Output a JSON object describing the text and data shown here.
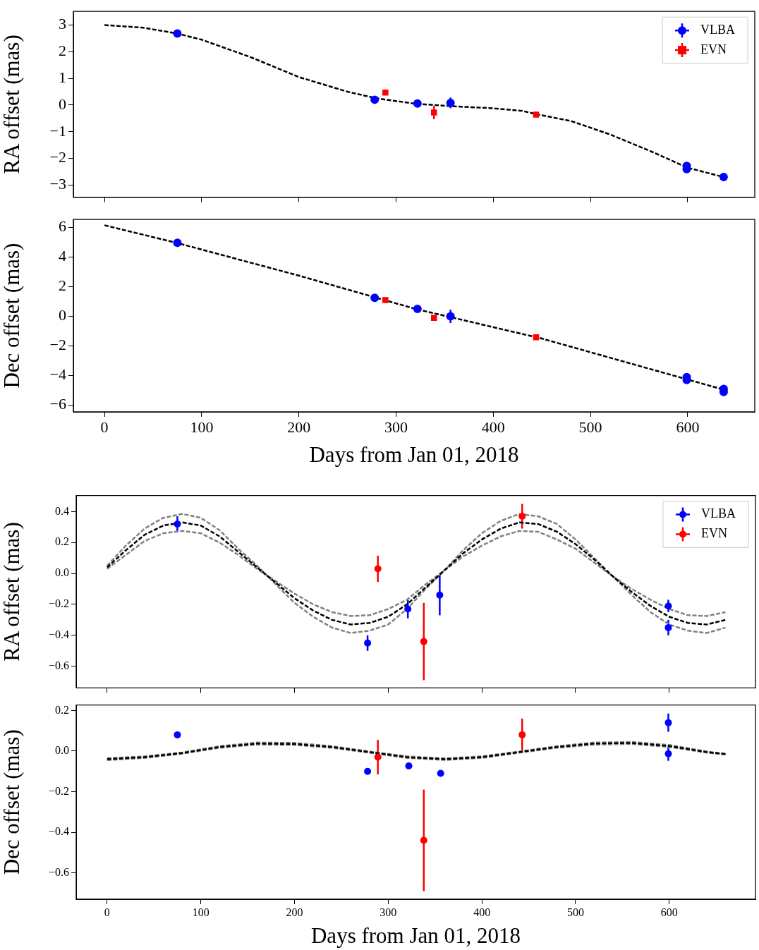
{
  "chart_data": [
    {
      "type": "scatter",
      "ylabel": "RA offset (mas)",
      "xlim": [
        -32,
        669
      ],
      "xticks": [
        0,
        100,
        200,
        300,
        400,
        500,
        600
      ],
      "ylim": [
        -3.46,
        3.51
      ],
      "yticks": [
        -3,
        -2,
        -1,
        0,
        1,
        2,
        3
      ],
      "tick_labels": "y",
      "grid": false,
      "legend": "top right",
      "series": [
        {
          "type": "line",
          "color": "#000000",
          "line_style": "dashed",
          "x": [
            0,
            40,
            75,
            100,
            150,
            200,
            250,
            280,
            320,
            360,
            400,
            430,
            444,
            480,
            520,
            560,
            600,
            637
          ],
          "values": [
            3.0,
            2.9,
            2.68,
            2.45,
            1.8,
            1.05,
            0.5,
            0.25,
            0.05,
            -0.05,
            -0.12,
            -0.22,
            -0.34,
            -0.6,
            -1.1,
            -1.7,
            -2.35,
            -2.7
          ]
        },
        {
          "type": "scatter",
          "name": "VLBA",
          "color": "#0000ff",
          "marker": "circle",
          "x": [
            75,
            278,
            322,
            356,
            599,
            599,
            637
          ],
          "values": [
            2.68,
            0.2,
            0.06,
            0.08,
            -2.28,
            -2.4,
            -2.7
          ],
          "errors": [
            null,
            null,
            null,
            0.2,
            null,
            null,
            null
          ]
        },
        {
          "type": "scatter",
          "name": "EVN",
          "color": "#ff0000",
          "marker": "square",
          "x": [
            289,
            339,
            444
          ],
          "values": [
            0.47,
            -0.28,
            -0.36
          ],
          "errors": [
            null,
            0.25,
            null
          ]
        }
      ]
    },
    {
      "type": "scatter",
      "ylabel": "Dec offset (mas)",
      "xlabel": "Days from Jan 01, 2018",
      "xlim": [
        -32,
        669
      ],
      "xticks": [
        0,
        100,
        200,
        300,
        400,
        500,
        600
      ],
      "ylim": [
        -6.45,
        6.54
      ],
      "yticks": [
        -6,
        -4,
        -2,
        0,
        2,
        4,
        6
      ],
      "grid": false,
      "series": [
        {
          "type": "line",
          "color": "#000000",
          "line_style": "dashed",
          "x": [
            0,
            75,
            200,
            320,
            450,
            637
          ],
          "values": [
            6.15,
            4.95,
            2.75,
            0.5,
            -1.5,
            -4.95
          ]
        },
        {
          "type": "scatter",
          "color": "#0000ff",
          "marker": "circle",
          "x": [
            75,
            278,
            322,
            356,
            599,
            599,
            637,
            637
          ],
          "values": [
            4.97,
            1.25,
            0.5,
            0.0,
            -4.1,
            -4.3,
            -4.9,
            -5.1
          ],
          "errors": [
            null,
            null,
            null,
            0.45,
            null,
            null,
            null,
            null
          ]
        },
        {
          "type": "scatter",
          "color": "#ff0000",
          "marker": "square",
          "x": [
            289,
            339,
            444
          ],
          "values": [
            1.1,
            -0.1,
            -1.42
          ]
        }
      ]
    },
    {
      "type": "scatter",
      "ylabel": "RA offset (mas)",
      "xlim": [
        -33,
        692
      ],
      "xticks": [
        0,
        100,
        200,
        300,
        400,
        500,
        600
      ],
      "ylim": [
        -0.74,
        0.504
      ],
      "yticks": [
        {
          "value": -0.6,
          "label": "−0.6"
        },
        {
          "value": -0.4,
          "label": "−0.4"
        },
        {
          "value": -0.2,
          "label": "−0.2"
        },
        {
          "value": 0,
          "label": "0.0"
        },
        {
          "value": 0.2,
          "label": "0.2"
        },
        {
          "value": 0.4,
          "label": "0.4"
        }
      ],
      "tick_labels": "y",
      "grid": false,
      "legend": "top right",
      "series": [
        {
          "type": "line",
          "color": "#000000",
          "line_style": "dashed",
          "x": [
            0,
            20,
            40,
            60,
            80,
            100,
            120,
            140,
            160,
            180,
            200,
            220,
            240,
            260,
            280,
            300,
            320,
            340,
            360,
            380,
            400,
            420,
            440,
            460,
            480,
            500,
            520,
            540,
            560,
            580,
            600,
            620,
            640,
            660
          ],
          "values": [
            0.04,
            0.15,
            0.25,
            0.31,
            0.33,
            0.31,
            0.24,
            0.14,
            0.04,
            -0.06,
            -0.16,
            -0.24,
            -0.3,
            -0.33,
            -0.32,
            -0.28,
            -0.2,
            -0.09,
            0.02,
            0.13,
            0.22,
            0.29,
            0.33,
            0.32,
            0.27,
            0.19,
            0.09,
            -0.02,
            -0.12,
            -0.21,
            -0.28,
            -0.32,
            -0.33,
            -0.3
          ]
        },
        {
          "type": "line",
          "color": "#808080",
          "line_style": "dashed",
          "x": [
            0,
            20,
            40,
            60,
            80,
            100,
            120,
            140,
            160,
            180,
            200,
            220,
            240,
            260,
            280,
            300,
            320,
            340,
            360,
            380,
            400,
            420,
            440,
            460,
            480,
            500,
            520,
            540,
            560,
            580,
            600,
            620,
            640,
            660
          ],
          "values": [
            0.05,
            0.18,
            0.29,
            0.36,
            0.385,
            0.36,
            0.28,
            0.16,
            0.05,
            -0.07,
            -0.19,
            -0.28,
            -0.35,
            -0.385,
            -0.37,
            -0.33,
            -0.23,
            -0.1,
            0.02,
            0.15,
            0.26,
            0.34,
            0.385,
            0.37,
            0.32,
            0.22,
            0.1,
            -0.02,
            -0.14,
            -0.25,
            -0.33,
            -0.37,
            -0.385,
            -0.35
          ]
        },
        {
          "type": "line",
          "color": "#808080",
          "line_style": "dashed",
          "x": [
            0,
            20,
            40,
            60,
            80,
            100,
            120,
            140,
            160,
            180,
            200,
            220,
            240,
            260,
            280,
            300,
            320,
            340,
            360,
            380,
            400,
            420,
            440,
            460,
            480,
            500,
            520,
            540,
            560,
            580,
            600,
            620,
            640,
            660
          ],
          "values": [
            0.03,
            0.12,
            0.21,
            0.26,
            0.275,
            0.26,
            0.2,
            0.12,
            0.03,
            -0.05,
            -0.13,
            -0.2,
            -0.25,
            -0.275,
            -0.27,
            -0.23,
            -0.17,
            -0.07,
            0.02,
            0.11,
            0.18,
            0.24,
            0.275,
            0.27,
            0.22,
            0.16,
            0.07,
            -0.02,
            -0.1,
            -0.17,
            -0.23,
            -0.27,
            -0.275,
            -0.25
          ]
        },
        {
          "type": "scatter",
          "name": "VLBA",
          "color": "#0000ff",
          "marker": "circle",
          "x": [
            75,
            278,
            321,
            355,
            599,
            599
          ],
          "values": [
            0.32,
            -0.45,
            -0.23,
            -0.14,
            -0.21,
            -0.35
          ],
          "errors": [
            0.05,
            0.05,
            0.06,
            0.13,
            0.04,
            0.05
          ]
        },
        {
          "type": "scatter",
          "name": "EVN",
          "color": "#ff0000",
          "marker": "circle",
          "x": [
            289,
            338,
            443
          ],
          "values": [
            0.03,
            -0.44,
            0.37
          ],
          "errors": [
            0.085,
            0.25,
            0.08
          ]
        }
      ]
    },
    {
      "type": "scatter",
      "ylabel": "Dec offset (mas)",
      "xlabel": "Days from Jan 01, 2018",
      "xlim": [
        -33,
        692
      ],
      "xticks": [
        0,
        100,
        200,
        300,
        400,
        500,
        600
      ],
      "ylim": [
        -0.73,
        0.227
      ],
      "yticks": [
        {
          "value": -0.6,
          "label": "−0.6"
        },
        {
          "value": -0.4,
          "label": "−0.4"
        },
        {
          "value": -0.2,
          "label": "−0.2"
        },
        {
          "value": 0,
          "label": "0.0"
        },
        {
          "value": 0.2,
          "label": "0.2"
        }
      ],
      "grid": false,
      "series": [
        {
          "type": "line",
          "color": "#000000",
          "line_style": "dashed",
          "x": [
            0,
            40,
            80,
            120,
            160,
            200,
            240,
            280,
            320,
            360,
            400,
            440,
            480,
            520,
            560,
            600,
            640,
            660
          ],
          "values": [
            -0.04,
            -0.03,
            -0.01,
            0.02,
            0.037,
            0.035,
            0.02,
            -0.005,
            -0.03,
            -0.04,
            -0.03,
            -0.005,
            0.02,
            0.037,
            0.04,
            0.025,
            -0.005,
            -0.015
          ]
        },
        {
          "type": "line",
          "color": "#808080",
          "line_style": "dashed",
          "x": [
            0,
            40,
            80,
            120,
            160,
            200,
            240,
            280,
            320,
            360,
            400,
            440,
            480,
            520,
            560,
            600,
            640,
            660
          ],
          "values": [
            -0.035,
            -0.026,
            -0.007,
            0.024,
            0.042,
            0.04,
            0.024,
            -0.002,
            -0.026,
            -0.036,
            -0.026,
            -0.002,
            0.024,
            0.042,
            0.045,
            0.03,
            -0.002,
            -0.013
          ]
        },
        {
          "type": "line",
          "color": "#808080",
          "line_style": "dashed",
          "x": [
            0,
            40,
            80,
            120,
            160,
            200,
            240,
            280,
            320,
            360,
            400,
            440,
            480,
            520,
            560,
            600,
            640,
            660
          ],
          "values": [
            -0.045,
            -0.034,
            -0.013,
            0.016,
            0.032,
            0.03,
            0.016,
            -0.008,
            -0.034,
            -0.044,
            -0.034,
            -0.008,
            0.016,
            0.032,
            0.035,
            0.02,
            -0.008,
            -0.017
          ]
        },
        {
          "type": "scatter",
          "color": "#0000ff",
          "marker": "circle",
          "x": [
            75,
            278,
            322,
            356,
            599,
            599
          ],
          "values": [
            0.08,
            -0.1,
            -0.073,
            -0.11,
            0.14,
            -0.013
          ],
          "errors": [
            null,
            null,
            null,
            null,
            0.045,
            0.035
          ]
        },
        {
          "type": "scatter",
          "color": "#ff0000",
          "marker": "circle",
          "x": [
            289,
            338,
            443
          ],
          "values": [
            -0.03,
            -0.44,
            0.08
          ],
          "errors": [
            0.085,
            0.25,
            0.08
          ]
        }
      ]
    }
  ]
}
